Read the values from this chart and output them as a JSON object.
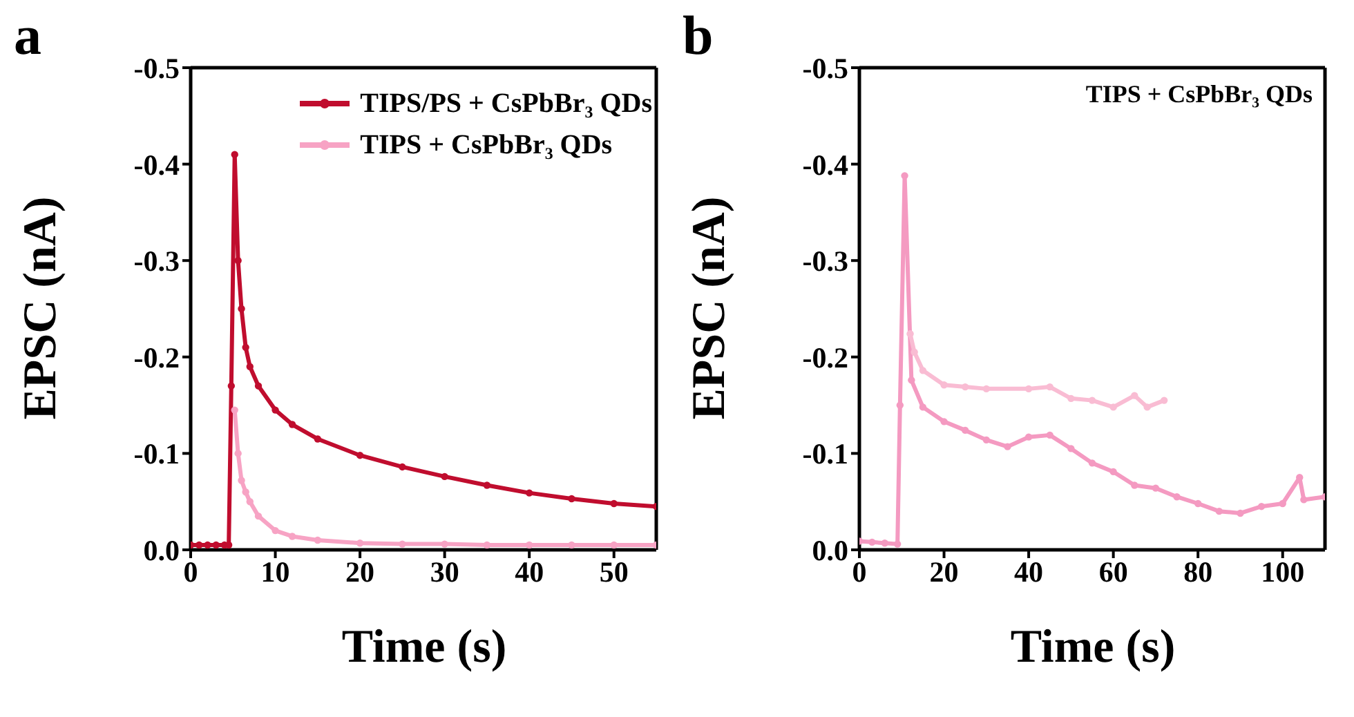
{
  "chart_data": [
    {
      "type": "line",
      "title": "a",
      "xlabel": "Time (s)",
      "ylabel": "EPSC (nA)",
      "xlim": [
        0,
        55
      ],
      "xticks": [
        0,
        10,
        20,
        30,
        40,
        50
      ],
      "ylim": [
        0,
        -0.5
      ],
      "yticks": [
        {
          "value": 0,
          "label": "0.0"
        },
        -0.1,
        -0.2,
        -0.3,
        -0.4,
        -0.5
      ],
      "legend": "top right",
      "marker": "circle",
      "line_style": "solid",
      "grid": false,
      "series": [
        {
          "name": "TIPS/PS + CsPbBr₃ QDs",
          "color": "#c00d2e",
          "x": [
            0,
            1,
            2,
            3,
            4,
            4.5,
            4.8,
            5.2,
            5.6,
            6,
            6.5,
            7,
            8,
            10,
            12,
            15,
            20,
            25,
            30,
            35,
            40,
            45,
            50,
            55
          ],
          "values": [
            -0.005,
            -0.005,
            -0.005,
            -0.005,
            -0.005,
            -0.005,
            -0.17,
            -0.41,
            -0.3,
            -0.25,
            -0.21,
            -0.19,
            -0.17,
            -0.145,
            -0.13,
            -0.115,
            -0.098,
            -0.086,
            -0.076,
            -0.067,
            -0.059,
            -0.053,
            -0.048,
            -0.045
          ]
        },
        {
          "name": "TIPS + CsPbBr₃ QDs",
          "color": "#f7a3c4",
          "x": [
            5.2,
            5.6,
            6,
            6.5,
            7,
            8,
            10,
            12,
            15,
            20,
            25,
            30,
            35,
            40,
            45,
            50,
            55
          ],
          "values": [
            -0.145,
            -0.1,
            -0.072,
            -0.06,
            -0.05,
            -0.035,
            -0.02,
            -0.014,
            -0.01,
            -0.007,
            -0.006,
            -0.006,
            -0.005,
            -0.005,
            -0.005,
            -0.005,
            -0.005
          ]
        }
      ]
    },
    {
      "type": "line",
      "title": "b",
      "xlabel": "Time (s)",
      "ylabel": "EPSC (nA)",
      "xlim": [
        0,
        110
      ],
      "xticks": [
        0,
        20,
        40,
        60,
        80,
        100
      ],
      "ylim": [
        0,
        -0.5
      ],
      "yticks": [
        {
          "value": 0,
          "label": "0.0"
        },
        -0.1,
        -0.2,
        -0.3,
        -0.4,
        -0.5
      ],
      "marker": "circle",
      "line_style": "solid",
      "grid": false,
      "annotations": [
        "TIPS + CsPbBr₃ QDs"
      ],
      "series": [
        {
          "color": "#f49ac1",
          "x": [
            0,
            3,
            6,
            9,
            9.6,
            10.7,
            12.3,
            15,
            20,
            25,
            30,
            35,
            40,
            45,
            50,
            55,
            60,
            65,
            70,
            75,
            80,
            85,
            90,
            95,
            100,
            104,
            105,
            110
          ],
          "values": [
            -0.009,
            -0.008,
            -0.007,
            -0.006,
            -0.15,
            -0.388,
            -0.176,
            -0.148,
            -0.133,
            -0.124,
            -0.114,
            -0.107,
            -0.117,
            -0.119,
            -0.105,
            -0.09,
            -0.081,
            -0.067,
            -0.064,
            -0.055,
            -0.048,
            -0.04,
            -0.038,
            -0.045,
            -0.048,
            -0.075,
            -0.052,
            -0.055
          ]
        },
        {
          "color": "#f9bcd3",
          "x": [
            12,
            13,
            15,
            20,
            25,
            30,
            40,
            45,
            50,
            55,
            60,
            65,
            68,
            72
          ],
          "values": [
            -0.224,
            -0.205,
            -0.186,
            -0.171,
            -0.169,
            -0.167,
            -0.167,
            -0.169,
            -0.157,
            -0.155,
            -0.148,
            -0.16,
            -0.148,
            -0.155
          ]
        }
      ]
    }
  ]
}
